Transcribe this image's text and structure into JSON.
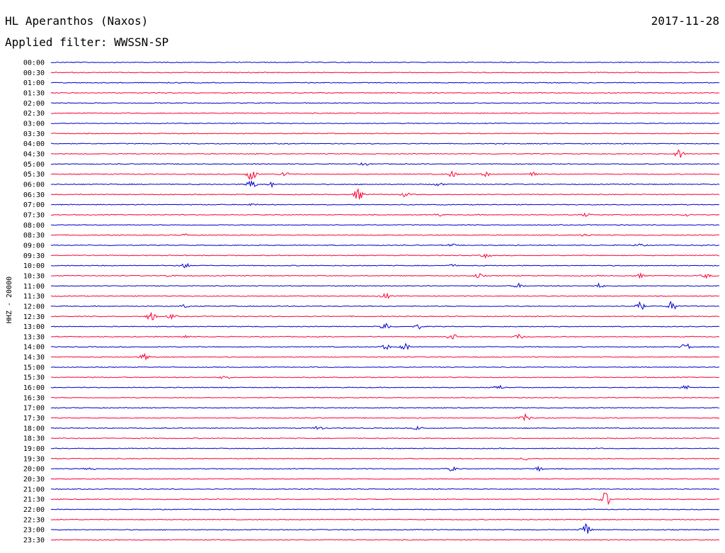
{
  "header": {
    "station": "HL Aperanthos (Naxos)",
    "filter": "Applied filter: WWSSN-SP",
    "date": "2017-11-28"
  },
  "chart_data": {
    "type": "line",
    "title": "HL Aperanthos (Naxos)",
    "subtitle": "Applied filter: WWSSN-SP",
    "date": "2017-11-28",
    "ylabel": "HHZ - 20000",
    "xlabel": "",
    "trace_colors": [
      "#0000cc",
      "#ff0033"
    ],
    "grid": false,
    "legend": "none",
    "rows": [
      {
        "label": "00:00"
      },
      {
        "label": "00:30"
      },
      {
        "label": "01:00"
      },
      {
        "label": "01:30"
      },
      {
        "label": "02:00"
      },
      {
        "label": "02:30"
      },
      {
        "label": "03:00"
      },
      {
        "label": "03:30"
      },
      {
        "label": "04:00"
      },
      {
        "label": "04:30",
        "events": [
          [
            0.94,
            6
          ]
        ]
      },
      {
        "label": "05:00",
        "events": [
          [
            0.47,
            2
          ]
        ]
      },
      {
        "label": "05:30",
        "events": [
          [
            0.3,
            9
          ],
          [
            0.35,
            4
          ],
          [
            0.6,
            4
          ],
          [
            0.65,
            3
          ],
          [
            0.72,
            5
          ]
        ]
      },
      {
        "label": "06:00",
        "events": [
          [
            0.3,
            7
          ],
          [
            0.33,
            3
          ],
          [
            0.58,
            3
          ]
        ]
      },
      {
        "label": "06:30",
        "events": [
          [
            0.46,
            8
          ],
          [
            0.53,
            3
          ]
        ]
      },
      {
        "label": "07:00",
        "events": [
          [
            0.3,
            1.5
          ]
        ]
      },
      {
        "label": "07:30",
        "events": [
          [
            0.58,
            2
          ],
          [
            0.8,
            2
          ],
          [
            0.95,
            2
          ]
        ]
      },
      {
        "label": "08:00"
      },
      {
        "label": "08:30",
        "events": [
          [
            0.2,
            1.5
          ],
          [
            0.8,
            2
          ]
        ]
      },
      {
        "label": "09:00",
        "events": [
          [
            0.6,
            1.5
          ],
          [
            0.88,
            2
          ]
        ]
      },
      {
        "label": "09:30",
        "events": [
          [
            0.65,
            3
          ]
        ]
      },
      {
        "label": "10:00",
        "events": [
          [
            0.2,
            4
          ],
          [
            0.6,
            1.5
          ]
        ]
      },
      {
        "label": "10:30",
        "events": [
          [
            0.18,
            2
          ],
          [
            0.64,
            3
          ],
          [
            0.88,
            3
          ],
          [
            0.98,
            3
          ]
        ]
      },
      {
        "label": "11:00",
        "events": [
          [
            0.7,
            3
          ],
          [
            0.82,
            3
          ]
        ]
      },
      {
        "label": "11:30",
        "events": [
          [
            0.5,
            4
          ]
        ]
      },
      {
        "label": "12:00",
        "events": [
          [
            0.2,
            2
          ],
          [
            0.88,
            8
          ],
          [
            0.93,
            7
          ]
        ]
      },
      {
        "label": "12:30",
        "events": [
          [
            0.15,
            6
          ],
          [
            0.18,
            3
          ]
        ]
      },
      {
        "label": "13:00",
        "events": [
          [
            0.5,
            6
          ],
          [
            0.55,
            3
          ]
        ]
      },
      {
        "label": "13:30",
        "events": [
          [
            0.2,
            2
          ],
          [
            0.6,
            4
          ],
          [
            0.7,
            3
          ]
        ]
      },
      {
        "label": "14:00",
        "events": [
          [
            0.5,
            4
          ],
          [
            0.53,
            5
          ],
          [
            0.95,
            5
          ]
        ]
      },
      {
        "label": "14:30",
        "events": [
          [
            0.14,
            4
          ]
        ]
      },
      {
        "label": "15:00"
      },
      {
        "label": "15:30",
        "events": [
          [
            0.26,
            3
          ]
        ]
      },
      {
        "label": "16:00",
        "events": [
          [
            0.67,
            3
          ],
          [
            0.95,
            3
          ]
        ]
      },
      {
        "label": "16:30"
      },
      {
        "label": "17:00"
      },
      {
        "label": "17:30",
        "events": [
          [
            0.71,
            8
          ]
        ]
      },
      {
        "label": "18:00",
        "events": [
          [
            0.4,
            3
          ],
          [
            0.55,
            3
          ]
        ]
      },
      {
        "label": "18:30"
      },
      {
        "label": "19:00"
      },
      {
        "label": "19:30",
        "events": [
          [
            0.71,
            2
          ]
        ]
      },
      {
        "label": "20:00",
        "events": [
          [
            0.06,
            2
          ],
          [
            0.6,
            3
          ],
          [
            0.73,
            3
          ]
        ]
      },
      {
        "label": "20:30"
      },
      {
        "label": "21:00"
      },
      {
        "label": "21:30",
        "events": [
          [
            0.83,
            11
          ]
        ]
      },
      {
        "label": "22:00"
      },
      {
        "label": "22:30"
      },
      {
        "label": "23:00",
        "events": [
          [
            0.8,
            9
          ]
        ]
      },
      {
        "label": "23:30"
      }
    ]
  }
}
